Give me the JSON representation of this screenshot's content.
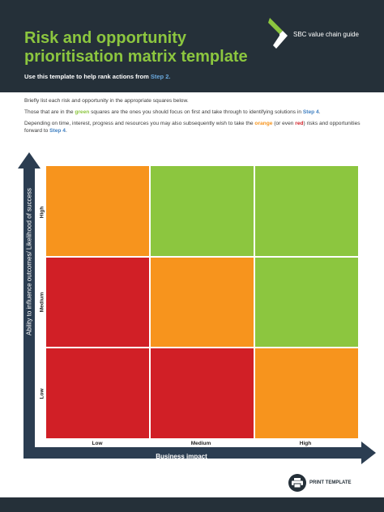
{
  "header": {
    "title": "Risk and opportunity prioritisation matrix template",
    "subtitle_prefix": "Use this template to help rank actions from ",
    "subtitle_link": "Step 2.",
    "brand": "SBC value chain guide",
    "logo_icon": "sbc-chevron-logo",
    "colors": {
      "background": "#253039",
      "title": "#8cc63f",
      "link": "#6aa8dc"
    }
  },
  "intro": {
    "p1": "Briefly list each risk and opportunity in the appropriate squares below.",
    "p2_a": "Those that are in the ",
    "p2_green": "green",
    "p2_b": " squares are the ones you should focus on first and take through to identifying solutions in ",
    "p2_step": "Step 4",
    "p2_c": ".",
    "p3_a": "Depending on time, interest, progress and resources you may also subsequently wish to take the ",
    "p3_orange": "orange",
    "p3_b": " (or even ",
    "p3_red": "red",
    "p3_c": ") risks and opportunities forward to ",
    "p3_step": "Step 4",
    "p3_d": "."
  },
  "matrix": {
    "y_axis_label": "Ability to influence outcomes/ Likelihood of success",
    "x_axis_label": "Business impact",
    "row_labels": [
      "High",
      "Medium",
      "Low"
    ],
    "col_labels": [
      "Low",
      "Medium",
      "High"
    ],
    "cells": [
      [
        "orange",
        "green",
        "green"
      ],
      [
        "red",
        "orange",
        "green"
      ],
      [
        "red",
        "red",
        "orange"
      ]
    ],
    "colors": {
      "green": "#8cc63f",
      "orange": "#f7941d",
      "red": "#d11f26",
      "axis": "#2b3d51"
    }
  },
  "print_button": {
    "label": "PRINT TEMPLATE",
    "icon": "printer-icon"
  }
}
